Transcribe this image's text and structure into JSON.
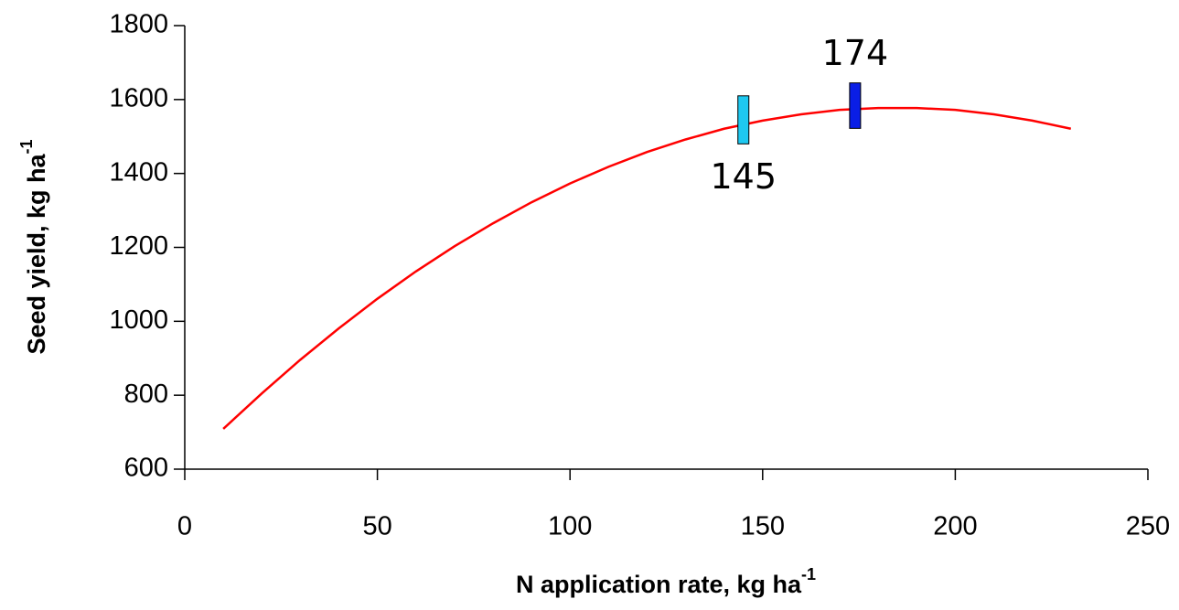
{
  "chart_data": {
    "type": "line",
    "x_label": "N application rate, kg ha",
    "x_label_sup": "-1",
    "y_label": "Seed yield, kg ha",
    "y_label_sup": "-1",
    "x": [
      10,
      20,
      30,
      40,
      50,
      60,
      70,
      80,
      90,
      100,
      110,
      120,
      130,
      140,
      150,
      160,
      170,
      180,
      190,
      200,
      210,
      220,
      230
    ],
    "series": [
      {
        "color": "#ff0000",
        "values": [
          709,
          805,
          896,
          981,
          1061,
          1135,
          1203,
          1265,
          1322,
          1373,
          1418,
          1458,
          1492,
          1521,
          1543,
          1560,
          1572,
          1577,
          1577,
          1572,
          1560,
          1543,
          1521
        ]
      }
    ],
    "markers": [
      {
        "x": 145,
        "low": 1480,
        "high": 1610,
        "color": "#1ec8f0",
        "label_position": "below"
      },
      {
        "x": 174,
        "low": 1522,
        "high": 1645,
        "color": "#0a1ee6",
        "label_position": "above"
      }
    ],
    "xlim": [
      0,
      250
    ],
    "xticks": [
      0,
      50,
      100,
      150,
      200,
      250
    ],
    "ylim": [
      600,
      1800
    ],
    "yticks": [
      600,
      800,
      1000,
      1200,
      1400,
      1600,
      1800
    ],
    "grid": false
  }
}
